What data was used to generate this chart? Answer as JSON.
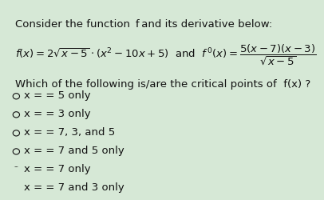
{
  "bg_color": "#d6e8d6",
  "title_line": "Consider the function  f and its derivative below:",
  "formula_line1": "f(x) = 2√x−5·(x² −10x + 5)  and  f ′(x) =",
  "fraction_num": "5(x−7)(x−3)",
  "fraction_den": "√x−5",
  "question_line": "Which of the following is/are the critical points of  f(x) ?",
  "options": [
    "x = 5 only",
    "x = 3 only",
    "x = 7, 3, and 5",
    "x = 7 and 5 only",
    "x = 7 only",
    "x = 7 and 3 only"
  ],
  "text_color": "#111111",
  "font_size_main": 9.5,
  "font_size_formula": 9.5,
  "font_size_options": 9.5
}
